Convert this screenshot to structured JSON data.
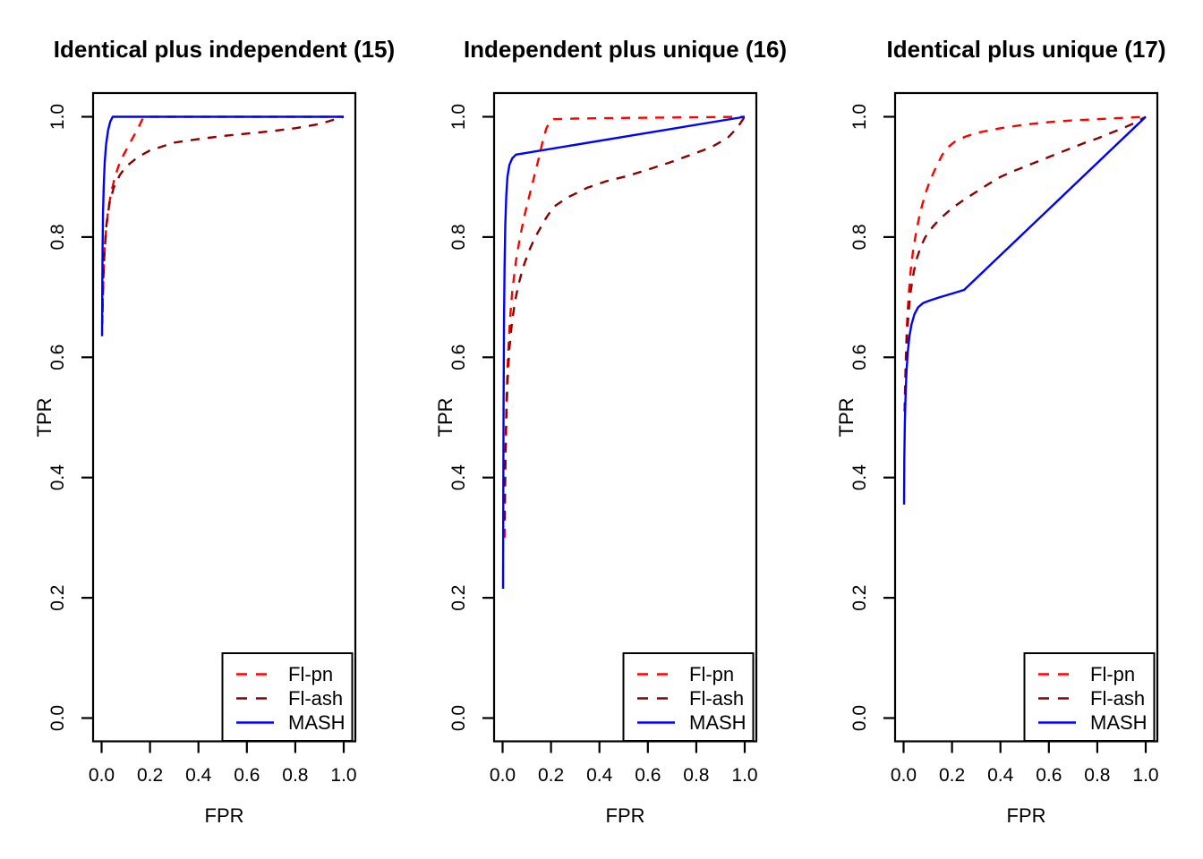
{
  "figure": {
    "background": "#ffffff",
    "axis_color": "#000000",
    "description": "Three ROC curve panels comparing methods by TPR vs FPR"
  },
  "legend": {
    "position": "bottom-right",
    "entries": [
      {
        "label": "Fl-pn",
        "color": "#ff0000",
        "line_style": "dashed"
      },
      {
        "label": "Fl-ash",
        "color": "#8b0000",
        "line_style": "dashed"
      },
      {
        "label": "MASH",
        "color": "#0000ff",
        "line_style": "solid"
      }
    ]
  },
  "chart_data": [
    {
      "type": "line",
      "title": "Identical plus independent (15)",
      "xlabel": "FPR",
      "ylabel": "TPR",
      "xlim": [
        0,
        1
      ],
      "ylim": [
        0,
        1
      ],
      "grid": false,
      "legend_position": "bottom-right",
      "x_ticks": [
        "0.0",
        "0.2",
        "0.4",
        "0.6",
        "0.8",
        "1.0"
      ],
      "y_ticks": [
        "0.0",
        "0.2",
        "0.4",
        "0.6",
        "0.8",
        "1.0"
      ],
      "series": [
        {
          "name": "Fl-pn",
          "color": "#ff0000",
          "style": "dashed",
          "points": [
            [
              0.003,
              0.655
            ],
            [
              0.005,
              0.7
            ],
            [
              0.008,
              0.74
            ],
            [
              0.012,
              0.775
            ],
            [
              0.018,
              0.81
            ],
            [
              0.027,
              0.845
            ],
            [
              0.04,
              0.875
            ],
            [
              0.055,
              0.9
            ],
            [
              0.07,
              0.918
            ],
            [
              0.09,
              0.936
            ],
            [
              0.11,
              0.951
            ],
            [
              0.13,
              0.966
            ],
            [
              0.15,
              0.98
            ],
            [
              0.165,
              0.993
            ],
            [
              0.175,
              1.0
            ],
            [
              1.0,
              1.0
            ]
          ]
        },
        {
          "name": "Fl-ash",
          "color": "#8b0000",
          "style": "dashed",
          "points": [
            [
              0.004,
              0.675
            ],
            [
              0.007,
              0.73
            ],
            [
              0.012,
              0.775
            ],
            [
              0.02,
              0.82
            ],
            [
              0.032,
              0.855
            ],
            [
              0.05,
              0.882
            ],
            [
              0.075,
              0.903
            ],
            [
              0.1,
              0.917
            ],
            [
              0.15,
              0.933
            ],
            [
              0.2,
              0.944
            ],
            [
              0.3,
              0.957
            ],
            [
              0.4,
              0.963
            ],
            [
              0.5,
              0.968
            ],
            [
              0.6,
              0.972
            ],
            [
              0.7,
              0.976
            ],
            [
              0.8,
              0.981
            ],
            [
              0.9,
              0.988
            ],
            [
              1.0,
              1.0
            ]
          ]
        },
        {
          "name": "MASH",
          "color": "#0000ff",
          "style": "solid",
          "points": [
            [
              0.002,
              0.635
            ],
            [
              0.003,
              0.72
            ],
            [
              0.004,
              0.78
            ],
            [
              0.006,
              0.84
            ],
            [
              0.009,
              0.885
            ],
            [
              0.013,
              0.925
            ],
            [
              0.019,
              0.955
            ],
            [
              0.027,
              0.978
            ],
            [
              0.036,
              0.992
            ],
            [
              0.046,
              1.0
            ],
            [
              1.0,
              1.0
            ]
          ]
        }
      ]
    },
    {
      "type": "line",
      "title": "Independent plus unique (16)",
      "xlabel": "FPR",
      "ylabel": "TPR",
      "xlim": [
        0,
        1
      ],
      "ylim": [
        0,
        1
      ],
      "grid": false,
      "legend_position": "bottom-right",
      "x_ticks": [
        "0.0",
        "0.2",
        "0.4",
        "0.6",
        "0.8",
        "1.0"
      ],
      "y_ticks": [
        "0.0",
        "0.2",
        "0.4",
        "0.6",
        "0.8",
        "1.0"
      ],
      "series": [
        {
          "name": "Fl-pn",
          "color": "#ff0000",
          "style": "dashed",
          "points": [
            [
              0.008,
              0.3
            ],
            [
              0.01,
              0.38
            ],
            [
              0.013,
              0.46
            ],
            [
              0.017,
              0.54
            ],
            [
              0.022,
              0.6
            ],
            [
              0.03,
              0.66
            ],
            [
              0.04,
              0.71
            ],
            [
              0.055,
              0.76
            ],
            [
              0.07,
              0.795
            ],
            [
              0.09,
              0.835
            ],
            [
              0.11,
              0.868
            ],
            [
              0.13,
              0.9
            ],
            [
              0.15,
              0.932
            ],
            [
              0.165,
              0.958
            ],
            [
              0.18,
              0.98
            ],
            [
              0.195,
              0.992
            ],
            [
              0.21,
              0.996
            ],
            [
              0.3,
              0.997
            ],
            [
              0.5,
              0.998
            ],
            [
              0.75,
              0.999
            ],
            [
              1.0,
              1.0
            ]
          ]
        },
        {
          "name": "Fl-ash",
          "color": "#8b0000",
          "style": "dashed",
          "points": [
            [
              0.009,
              0.33
            ],
            [
              0.012,
              0.43
            ],
            [
              0.016,
              0.51
            ],
            [
              0.021,
              0.565
            ],
            [
              0.028,
              0.615
            ],
            [
              0.038,
              0.655
            ],
            [
              0.05,
              0.69
            ],
            [
              0.065,
              0.72
            ],
            [
              0.085,
              0.75
            ],
            [
              0.11,
              0.778
            ],
            [
              0.135,
              0.8
            ],
            [
              0.18,
              0.832
            ],
            [
              0.21,
              0.85
            ],
            [
              0.27,
              0.866
            ],
            [
              0.35,
              0.882
            ],
            [
              0.43,
              0.893
            ],
            [
              0.51,
              0.901
            ],
            [
              0.6,
              0.912
            ],
            [
              0.69,
              0.924
            ],
            [
              0.78,
              0.937
            ],
            [
              0.86,
              0.949
            ],
            [
              0.93,
              0.965
            ],
            [
              0.97,
              0.982
            ],
            [
              1.0,
              1.0
            ]
          ]
        },
        {
          "name": "MASH",
          "color": "#0000ff",
          "style": "solid",
          "points": [
            [
              0.002,
              0.215
            ],
            [
              0.003,
              0.38
            ],
            [
              0.004,
              0.52
            ],
            [
              0.006,
              0.66
            ],
            [
              0.008,
              0.75
            ],
            [
              0.011,
              0.82
            ],
            [
              0.015,
              0.868
            ],
            [
              0.02,
              0.9
            ],
            [
              0.028,
              0.92
            ],
            [
              0.04,
              0.931
            ],
            [
              0.055,
              0.937
            ],
            [
              1.0,
              1.0
            ]
          ]
        }
      ]
    },
    {
      "type": "line",
      "title": "Identical plus unique (17)",
      "xlabel": "FPR",
      "ylabel": "TPR",
      "xlim": [
        0,
        1
      ],
      "ylim": [
        0,
        1
      ],
      "grid": false,
      "legend_position": "bottom-right",
      "x_ticks": [
        "0.0",
        "0.2",
        "0.4",
        "0.6",
        "0.8",
        "1.0"
      ],
      "y_ticks": [
        "0.0",
        "0.2",
        "0.4",
        "0.6",
        "0.8",
        "1.0"
      ],
      "series": [
        {
          "name": "Fl-pn",
          "color": "#ff0000",
          "style": "dashed",
          "points": [
            [
              0.004,
              0.51
            ],
            [
              0.007,
              0.565
            ],
            [
              0.011,
              0.625
            ],
            [
              0.016,
              0.672
            ],
            [
              0.022,
              0.71
            ],
            [
              0.03,
              0.747
            ],
            [
              0.04,
              0.78
            ],
            [
              0.055,
              0.815
            ],
            [
              0.07,
              0.843
            ],
            [
              0.09,
              0.872
            ],
            [
              0.11,
              0.895
            ],
            [
              0.135,
              0.917
            ],
            [
              0.16,
              0.937
            ],
            [
              0.185,
              0.95
            ],
            [
              0.21,
              0.958
            ],
            [
              0.25,
              0.966
            ],
            [
              0.3,
              0.973
            ],
            [
              0.4,
              0.981
            ],
            [
              0.5,
              0.987
            ],
            [
              0.6,
              0.991
            ],
            [
              0.7,
              0.994
            ],
            [
              0.8,
              0.996
            ],
            [
              0.9,
              0.998
            ],
            [
              1.0,
              1.0
            ]
          ]
        },
        {
          "name": "Fl-ash",
          "color": "#8b0000",
          "style": "dashed",
          "points": [
            [
              0.004,
              0.51
            ],
            [
              0.007,
              0.555
            ],
            [
              0.011,
              0.607
            ],
            [
              0.016,
              0.648
            ],
            [
              0.022,
              0.682
            ],
            [
              0.03,
              0.712
            ],
            [
              0.042,
              0.742
            ],
            [
              0.055,
              0.765
            ],
            [
              0.072,
              0.785
            ],
            [
              0.09,
              0.8
            ],
            [
              0.12,
              0.817
            ],
            [
              0.15,
              0.83
            ],
            [
              0.2,
              0.848
            ],
            [
              0.25,
              0.862
            ],
            [
              0.3,
              0.875
            ],
            [
              0.35,
              0.888
            ],
            [
              0.4,
              0.9
            ],
            [
              0.45,
              0.909
            ],
            [
              0.5,
              0.917
            ],
            [
              0.55,
              0.925
            ],
            [
              0.6,
              0.933
            ],
            [
              0.65,
              0.941
            ],
            [
              0.7,
              0.949
            ],
            [
              0.75,
              0.957
            ],
            [
              0.8,
              0.964
            ],
            [
              0.85,
              0.972
            ],
            [
              0.9,
              0.98
            ],
            [
              0.95,
              0.989
            ],
            [
              1.0,
              1.0
            ]
          ]
        },
        {
          "name": "MASH",
          "color": "#0000ff",
          "style": "solid",
          "points": [
            [
              0.002,
              0.355
            ],
            [
              0.003,
              0.43
            ],
            [
              0.005,
              0.49
            ],
            [
              0.008,
              0.535
            ],
            [
              0.012,
              0.575
            ],
            [
              0.017,
              0.607
            ],
            [
              0.024,
              0.635
            ],
            [
              0.033,
              0.655
            ],
            [
              0.045,
              0.672
            ],
            [
              0.06,
              0.683
            ],
            [
              0.08,
              0.69
            ],
            [
              0.105,
              0.694
            ],
            [
              0.15,
              0.7
            ],
            [
              0.2,
              0.706
            ],
            [
              0.25,
              0.712
            ],
            [
              1.0,
              1.0
            ]
          ]
        }
      ]
    }
  ]
}
